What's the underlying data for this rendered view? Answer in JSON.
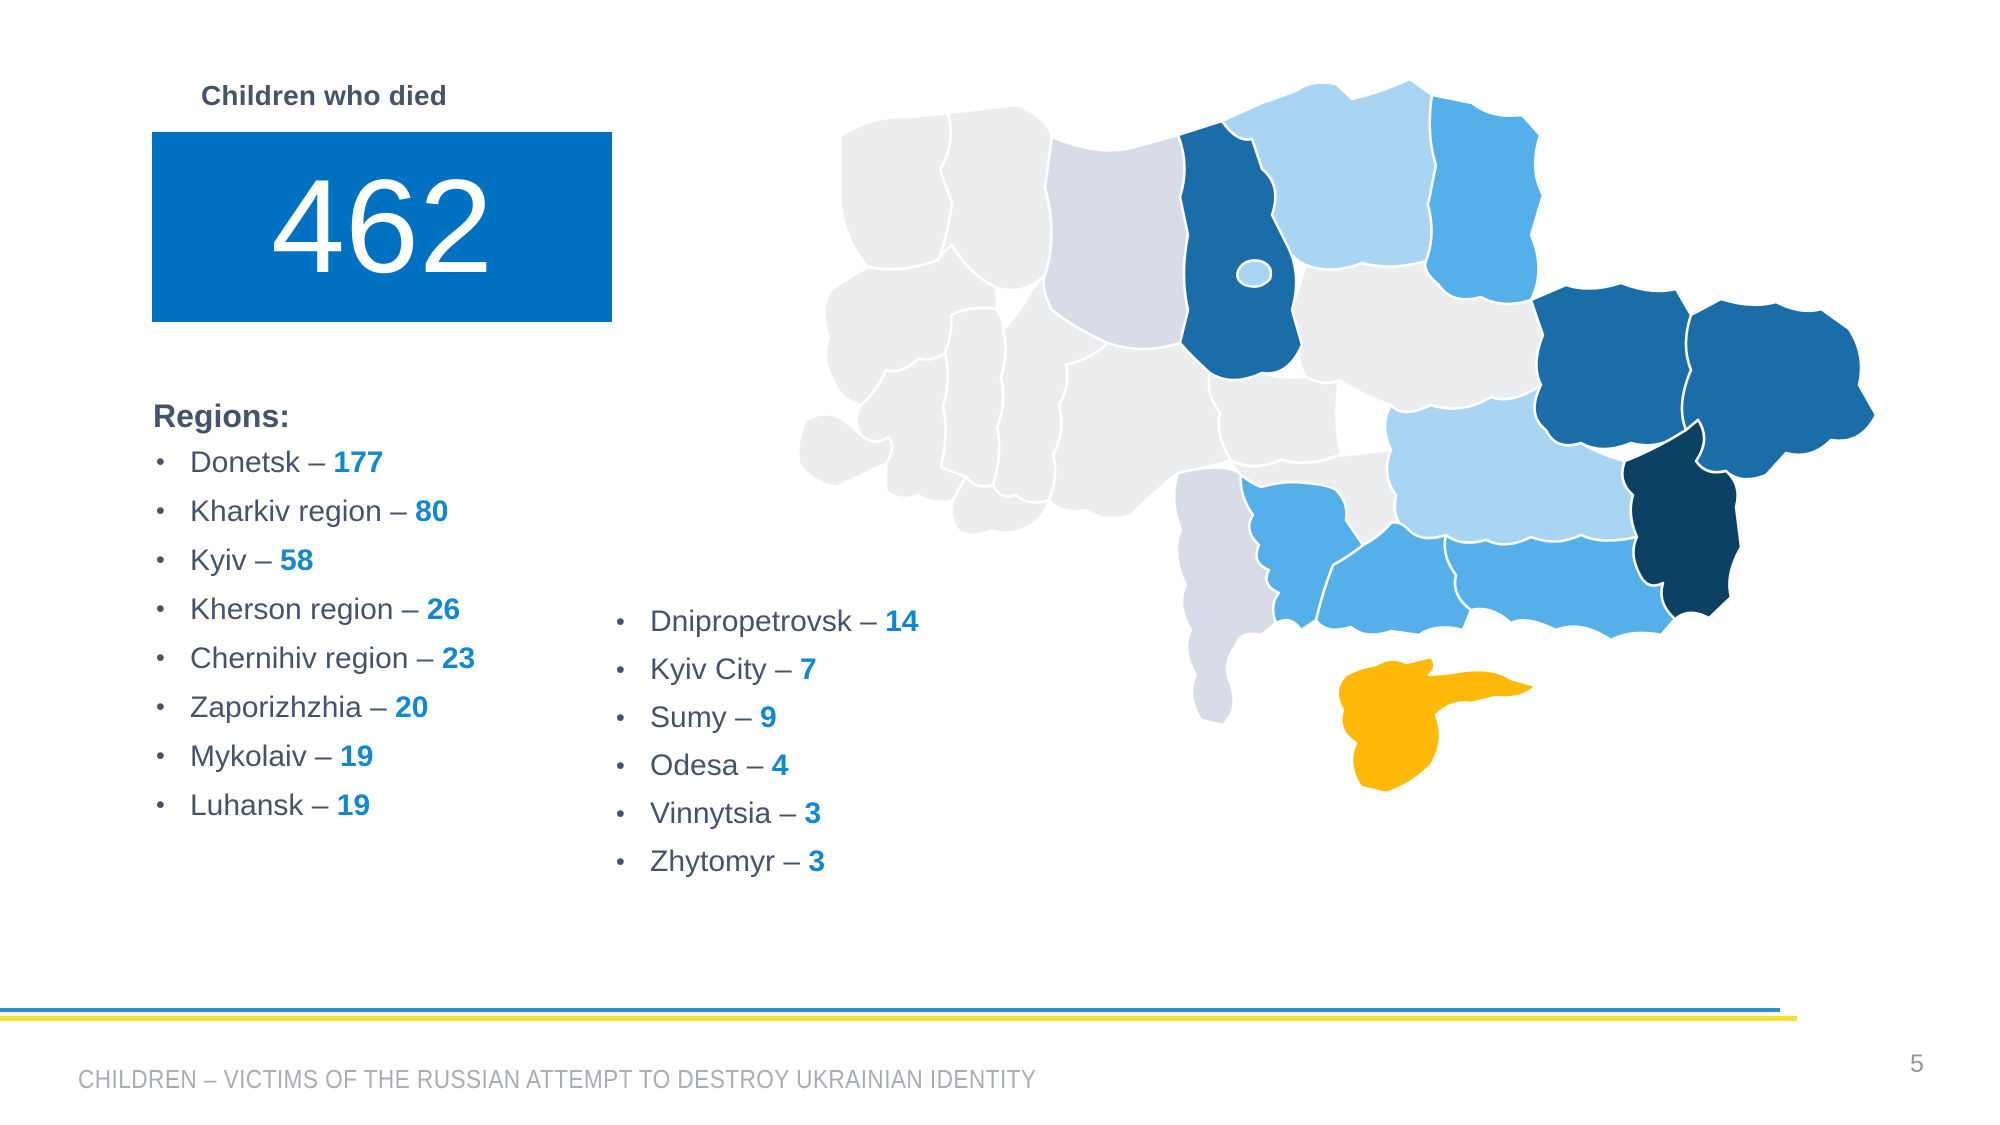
{
  "stat": {
    "label": "Children who died",
    "value": "462"
  },
  "separator": "–",
  "regions": {
    "heading": "Regions:",
    "column1": [
      {
        "name": "Donetsk",
        "value": "177"
      },
      {
        "name": "Kharkiv region",
        "value": "80"
      },
      {
        "name": "Kyiv",
        "value": "58"
      },
      {
        "name": "Kherson region",
        "value": "26"
      },
      {
        "name": "Chernihiv region",
        "value": "23"
      },
      {
        "name": "Zaporizhzhia",
        "value": "20"
      },
      {
        "name": "Mykolaiv",
        "value": "19"
      },
      {
        "name": "Luhansk",
        "value": "19"
      }
    ],
    "column2": [
      {
        "name": "Dnipropetrovsk",
        "value": "14"
      },
      {
        "name": "Kyiv City",
        "value": "7"
      },
      {
        "name": "Sumy",
        "value": "9"
      },
      {
        "name": "Odesa",
        "value": "4"
      },
      {
        "name": "Vinnytsia",
        "value": "3"
      },
      {
        "name": "Zhytomyr",
        "value": "3"
      }
    ]
  },
  "map": {
    "description": "Choropleth map of Ukraine oblasts",
    "palette": {
      "none": "#ECEDEF",
      "low": "#D7DCE8",
      "light": "#A9D5F3",
      "medium": "#55AFE9",
      "dark": "#1A6DA6",
      "highest": "#0D4164",
      "crimea": "#FFB90B",
      "border": "#FFFFFF"
    },
    "regions": [
      {
        "id": "volyn",
        "name": "Volyn",
        "fill": "none"
      },
      {
        "id": "rivne",
        "name": "Rivne",
        "fill": "none"
      },
      {
        "id": "lviv",
        "name": "Lviv",
        "fill": "none"
      },
      {
        "id": "ternopil",
        "name": "Ternopil",
        "fill": "none"
      },
      {
        "id": "khmelnytskyi",
        "name": "Khmelnytskyi",
        "fill": "none"
      },
      {
        "id": "ivano_frankivsk",
        "name": "Ivano-Frankivsk",
        "fill": "none"
      },
      {
        "id": "zakarpattia",
        "name": "Zakarpattia",
        "fill": "none"
      },
      {
        "id": "chernivtsi",
        "name": "Chernivtsi",
        "fill": "none"
      },
      {
        "id": "vinnytsia",
        "name": "Vinnytsia",
        "fill": "none"
      },
      {
        "id": "cherkasy",
        "name": "Cherkasy",
        "fill": "none"
      },
      {
        "id": "kirovohrad",
        "name": "Kirovohrad",
        "fill": "none"
      },
      {
        "id": "poltava",
        "name": "Poltava",
        "fill": "none"
      },
      {
        "id": "zhytomyr",
        "name": "Zhytomyr",
        "fill": "low"
      },
      {
        "id": "odesa",
        "name": "Odesa",
        "fill": "low"
      },
      {
        "id": "chernihiv",
        "name": "Chernihiv",
        "fill": "light"
      },
      {
        "id": "dnipropetrovsk",
        "name": "Dnipropetrovsk",
        "fill": "light"
      },
      {
        "id": "sumy",
        "name": "Sumy",
        "fill": "medium"
      },
      {
        "id": "kherson",
        "name": "Kherson",
        "fill": "medium"
      },
      {
        "id": "zaporizhzhia",
        "name": "Zaporizhzhia",
        "fill": "medium"
      },
      {
        "id": "mykolaiv",
        "name": "Mykolaiv",
        "fill": "medium"
      },
      {
        "id": "kyiv",
        "name": "Kyiv oblast",
        "fill": "dark"
      },
      {
        "id": "kharkiv",
        "name": "Kharkiv",
        "fill": "dark"
      },
      {
        "id": "luhansk",
        "name": "Luhansk",
        "fill": "dark"
      },
      {
        "id": "donetsk",
        "name": "Donetsk",
        "fill": "highest"
      },
      {
        "id": "kyiv_city",
        "name": "Kyiv City",
        "fill": "light"
      },
      {
        "id": "crimea",
        "name": "Crimea",
        "fill": "crimea"
      }
    ]
  },
  "footer": {
    "title": "CHILDREN – VICTIMS OF THE RUSSIAN ATTEMPT TO DESTROY UKRAINIAN IDENTITY",
    "page": "5"
  },
  "colors": {
    "stat_box": "#0070C0",
    "text": "#44546A",
    "number_accent": "#1487CE",
    "footer_text": "#A9AEB4",
    "flag_line_blue": "#2F8FCB",
    "flag_line_yellow": "#F3E134"
  }
}
